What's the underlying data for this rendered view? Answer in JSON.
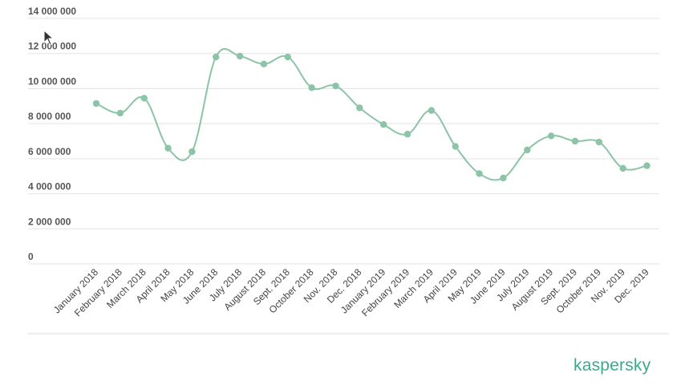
{
  "chart_data": {
    "type": "line",
    "categories": [
      "January 2018",
      "February 2018",
      "March 2018",
      "April 2018",
      "May 2018",
      "June 2018",
      "July 2018",
      "August 2018",
      "Sept. 2018",
      "October 2018",
      "Nov. 2018",
      "Dec. 2018",
      "January 2019",
      "February 2019",
      "March 2019",
      "April 2019",
      "May 2019",
      "June 2019",
      "July 2019",
      "August 2019",
      "Sept. 2019",
      "October 2019",
      "Nov. 2019",
      "Dec. 2019"
    ],
    "series": [
      {
        "values": [
          9150000,
          8600000,
          9450000,
          6600000,
          6400000,
          11800000,
          11850000,
          11400000,
          11800000,
          10050000,
          10150000,
          8900000,
          7950000,
          7400000,
          8750000,
          6700000,
          5150000,
          4900000,
          6500000,
          7300000,
          7000000,
          6950000,
          5450000,
          5600000
        ]
      }
    ],
    "yticks": [
      "0",
      "2 000 000",
      "4 000 000",
      "6 000 000",
      "8 000 000",
      "10 000 000",
      "12 000 000",
      "14 000 000"
    ],
    "ylim": [
      0,
      14000000
    ],
    "grid": true,
    "line_color": "#8cc4a7",
    "title": "",
    "xlabel": "",
    "ylabel": ""
  },
  "brand": {
    "logo_text": "kaspersky",
    "color": "#3aaa8a"
  }
}
